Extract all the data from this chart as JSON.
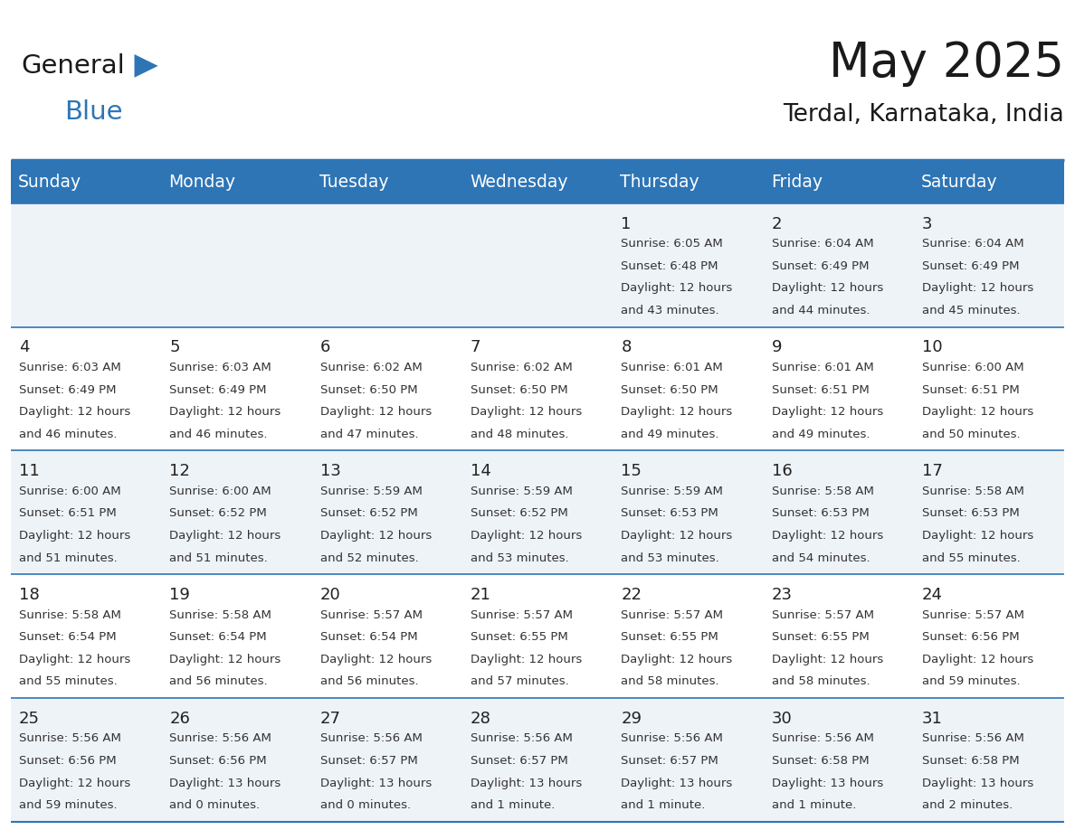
{
  "title": "May 2025",
  "subtitle": "Terdal, Karnataka, India",
  "header_color": "#2E75B6",
  "header_text_color": "#FFFFFF",
  "row_bg_odd": "#EEF3F8",
  "row_bg_even": "#FFFFFF",
  "border_color": "#2E75B6",
  "text_color": "#222222",
  "small_text_color": "#333333",
  "days_of_week": [
    "Sunday",
    "Monday",
    "Tuesday",
    "Wednesday",
    "Thursday",
    "Friday",
    "Saturday"
  ],
  "calendar_data": [
    [
      null,
      null,
      null,
      null,
      {
        "day": 1,
        "sunrise": "6:05 AM",
        "sunset": "6:48 PM",
        "daylight": "12 hours and 43 minutes."
      },
      {
        "day": 2,
        "sunrise": "6:04 AM",
        "sunset": "6:49 PM",
        "daylight": "12 hours and 44 minutes."
      },
      {
        "day": 3,
        "sunrise": "6:04 AM",
        "sunset": "6:49 PM",
        "daylight": "12 hours and 45 minutes."
      }
    ],
    [
      {
        "day": 4,
        "sunrise": "6:03 AM",
        "sunset": "6:49 PM",
        "daylight": "12 hours and 46 minutes."
      },
      {
        "day": 5,
        "sunrise": "6:03 AM",
        "sunset": "6:49 PM",
        "daylight": "12 hours and 46 minutes."
      },
      {
        "day": 6,
        "sunrise": "6:02 AM",
        "sunset": "6:50 PM",
        "daylight": "12 hours and 47 minutes."
      },
      {
        "day": 7,
        "sunrise": "6:02 AM",
        "sunset": "6:50 PM",
        "daylight": "12 hours and 48 minutes."
      },
      {
        "day": 8,
        "sunrise": "6:01 AM",
        "sunset": "6:50 PM",
        "daylight": "12 hours and 49 minutes."
      },
      {
        "day": 9,
        "sunrise": "6:01 AM",
        "sunset": "6:51 PM",
        "daylight": "12 hours and 49 minutes."
      },
      {
        "day": 10,
        "sunrise": "6:00 AM",
        "sunset": "6:51 PM",
        "daylight": "12 hours and 50 minutes."
      }
    ],
    [
      {
        "day": 11,
        "sunrise": "6:00 AM",
        "sunset": "6:51 PM",
        "daylight": "12 hours and 51 minutes."
      },
      {
        "day": 12,
        "sunrise": "6:00 AM",
        "sunset": "6:52 PM",
        "daylight": "12 hours and 51 minutes."
      },
      {
        "day": 13,
        "sunrise": "5:59 AM",
        "sunset": "6:52 PM",
        "daylight": "12 hours and 52 minutes."
      },
      {
        "day": 14,
        "sunrise": "5:59 AM",
        "sunset": "6:52 PM",
        "daylight": "12 hours and 53 minutes."
      },
      {
        "day": 15,
        "sunrise": "5:59 AM",
        "sunset": "6:53 PM",
        "daylight": "12 hours and 53 minutes."
      },
      {
        "day": 16,
        "sunrise": "5:58 AM",
        "sunset": "6:53 PM",
        "daylight": "12 hours and 54 minutes."
      },
      {
        "day": 17,
        "sunrise": "5:58 AM",
        "sunset": "6:53 PM",
        "daylight": "12 hours and 55 minutes."
      }
    ],
    [
      {
        "day": 18,
        "sunrise": "5:58 AM",
        "sunset": "6:54 PM",
        "daylight": "12 hours and 55 minutes."
      },
      {
        "day": 19,
        "sunrise": "5:58 AM",
        "sunset": "6:54 PM",
        "daylight": "12 hours and 56 minutes."
      },
      {
        "day": 20,
        "sunrise": "5:57 AM",
        "sunset": "6:54 PM",
        "daylight": "12 hours and 56 minutes."
      },
      {
        "day": 21,
        "sunrise": "5:57 AM",
        "sunset": "6:55 PM",
        "daylight": "12 hours and 57 minutes."
      },
      {
        "day": 22,
        "sunrise": "5:57 AM",
        "sunset": "6:55 PM",
        "daylight": "12 hours and 58 minutes."
      },
      {
        "day": 23,
        "sunrise": "5:57 AM",
        "sunset": "6:55 PM",
        "daylight": "12 hours and 58 minutes."
      },
      {
        "day": 24,
        "sunrise": "5:57 AM",
        "sunset": "6:56 PM",
        "daylight": "12 hours and 59 minutes."
      }
    ],
    [
      {
        "day": 25,
        "sunrise": "5:56 AM",
        "sunset": "6:56 PM",
        "daylight": "12 hours and 59 minutes."
      },
      {
        "day": 26,
        "sunrise": "5:56 AM",
        "sunset": "6:56 PM",
        "daylight": "13 hours and 0 minutes."
      },
      {
        "day": 27,
        "sunrise": "5:56 AM",
        "sunset": "6:57 PM",
        "daylight": "13 hours and 0 minutes."
      },
      {
        "day": 28,
        "sunrise": "5:56 AM",
        "sunset": "6:57 PM",
        "daylight": "13 hours and 1 minute."
      },
      {
        "day": 29,
        "sunrise": "5:56 AM",
        "sunset": "6:57 PM",
        "daylight": "13 hours and 1 minute."
      },
      {
        "day": 30,
        "sunrise": "5:56 AM",
        "sunset": "6:58 PM",
        "daylight": "13 hours and 1 minute."
      },
      {
        "day": 31,
        "sunrise": "5:56 AM",
        "sunset": "6:58 PM",
        "daylight": "13 hours and 2 minutes."
      }
    ]
  ]
}
